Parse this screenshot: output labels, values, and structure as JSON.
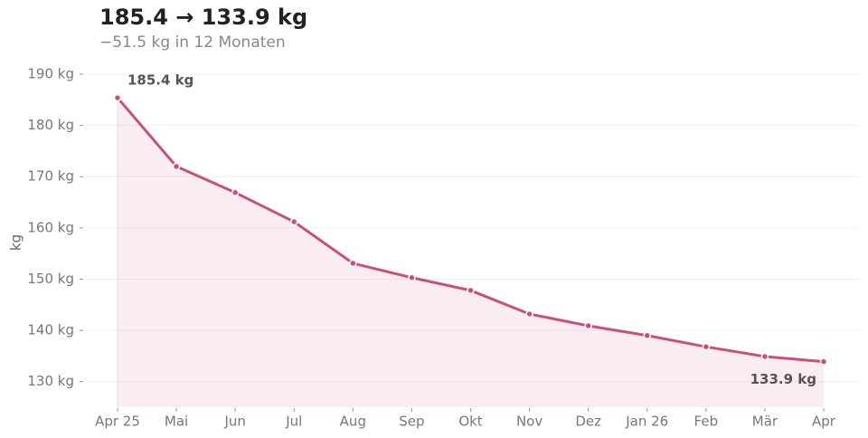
{
  "chart_data": {
    "type": "line",
    "title": "185.4 → 133.9 kg",
    "subtitle": "−51.5 kg in 12 Monaten",
    "y_label": "kg",
    "categories": [
      "Apr 25",
      "Mai",
      "Jun",
      "Jul",
      "Aug",
      "Sep",
      "Okt",
      "Nov",
      "Dez",
      "Jan 26",
      "Feb",
      "Mär",
      "Apr"
    ],
    "values": [
      185.4,
      172.0,
      166.9,
      161.2,
      153.1,
      150.3,
      147.8,
      143.2,
      140.9,
      139.0,
      136.8,
      134.9,
      133.9
    ],
    "value_labels": [
      "185.4 kg",
      null,
      null,
      null,
      null,
      null,
      null,
      null,
      null,
      null,
      null,
      null,
      "133.9 kg"
    ],
    "color": "#c9507e",
    "area": true,
    "grid": true,
    "ylim": [
      125,
      192
    ],
    "yticks": [
      {
        "value": 130,
        "label": "130 kg"
      },
      {
        "value": 140,
        "label": "140 kg"
      },
      {
        "value": 150,
        "label": "150 kg"
      },
      {
        "value": 160,
        "label": "160 kg"
      },
      {
        "value": 170,
        "label": "170 kg"
      },
      {
        "value": 180,
        "label": "180 kg"
      },
      {
        "value": 190,
        "label": "190 kg"
      }
    ]
  }
}
